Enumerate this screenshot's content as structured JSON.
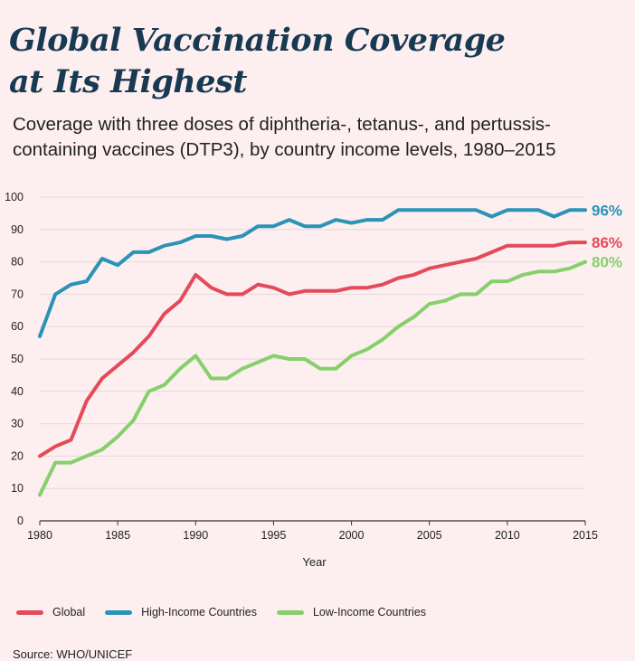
{
  "header": {
    "title_line1": "Global Vaccination Coverage",
    "title_line2": "at Its Highest",
    "subtitle_line1": "Coverage with three doses of diphtheria-, tetanus-, and pertussis-",
    "subtitle_line2": "containing vaccines (DTP3), by country income levels, 1980–2015"
  },
  "colors": {
    "Global": "#e34b59",
    "High-Income Countries": "#2a93b6",
    "Low-Income Countries": "#86d06b",
    "grid": "#e6d9db",
    "axis": "#333333"
  },
  "chart_data": {
    "type": "line",
    "title": "Global Vaccination Coverage at Its Highest",
    "xlabel": "Year",
    "ylabel": "",
    "xlim": [
      1980,
      2015
    ],
    "ylim": [
      0,
      100
    ],
    "xticks": [
      1980,
      1985,
      1990,
      1995,
      2000,
      2005,
      2010,
      2015
    ],
    "yticks": [
      0,
      10,
      20,
      30,
      40,
      50,
      60,
      70,
      80,
      90,
      100
    ],
    "grid": true,
    "legend": "bottom",
    "x": [
      1980,
      1981,
      1982,
      1983,
      1984,
      1985,
      1986,
      1987,
      1988,
      1989,
      1990,
      1991,
      1992,
      1993,
      1994,
      1995,
      1996,
      1997,
      1998,
      1999,
      2000,
      2001,
      2002,
      2003,
      2004,
      2005,
      2006,
      2007,
      2008,
      2009,
      2010,
      2011,
      2012,
      2013,
      2014,
      2015
    ],
    "series": [
      {
        "name": "Global",
        "end_label": "86%",
        "values": [
          20,
          23,
          25,
          37,
          44,
          48,
          52,
          57,
          64,
          68,
          76,
          72,
          70,
          70,
          73,
          72,
          70,
          71,
          71,
          71,
          72,
          72,
          73,
          75,
          76,
          78,
          79,
          80,
          81,
          83,
          85,
          85,
          85,
          85,
          86,
          86
        ]
      },
      {
        "name": "High-Income Countries",
        "end_label": "96%",
        "values": [
          57,
          70,
          73,
          74,
          81,
          79,
          83,
          83,
          85,
          86,
          88,
          88,
          87,
          88,
          91,
          91,
          93,
          91,
          91,
          93,
          92,
          93,
          93,
          96,
          96,
          96,
          96,
          96,
          96,
          94,
          96,
          96,
          96,
          94,
          96,
          96
        ]
      },
      {
        "name": "Low-Income Countries",
        "end_label": "80%",
        "values": [
          8,
          18,
          18,
          20,
          22,
          26,
          31,
          40,
          42,
          47,
          51,
          44,
          44,
          47,
          49,
          51,
          50,
          50,
          47,
          47,
          51,
          53,
          56,
          60,
          63,
          67,
          68,
          70,
          70,
          74,
          74,
          76,
          77,
          77,
          78,
          80
        ]
      }
    ]
  },
  "legend": {
    "items": [
      "Global",
      "High-Income Countries",
      "Low-Income Countries"
    ]
  },
  "footer": {
    "source": "Source: WHO/UNICEF"
  }
}
